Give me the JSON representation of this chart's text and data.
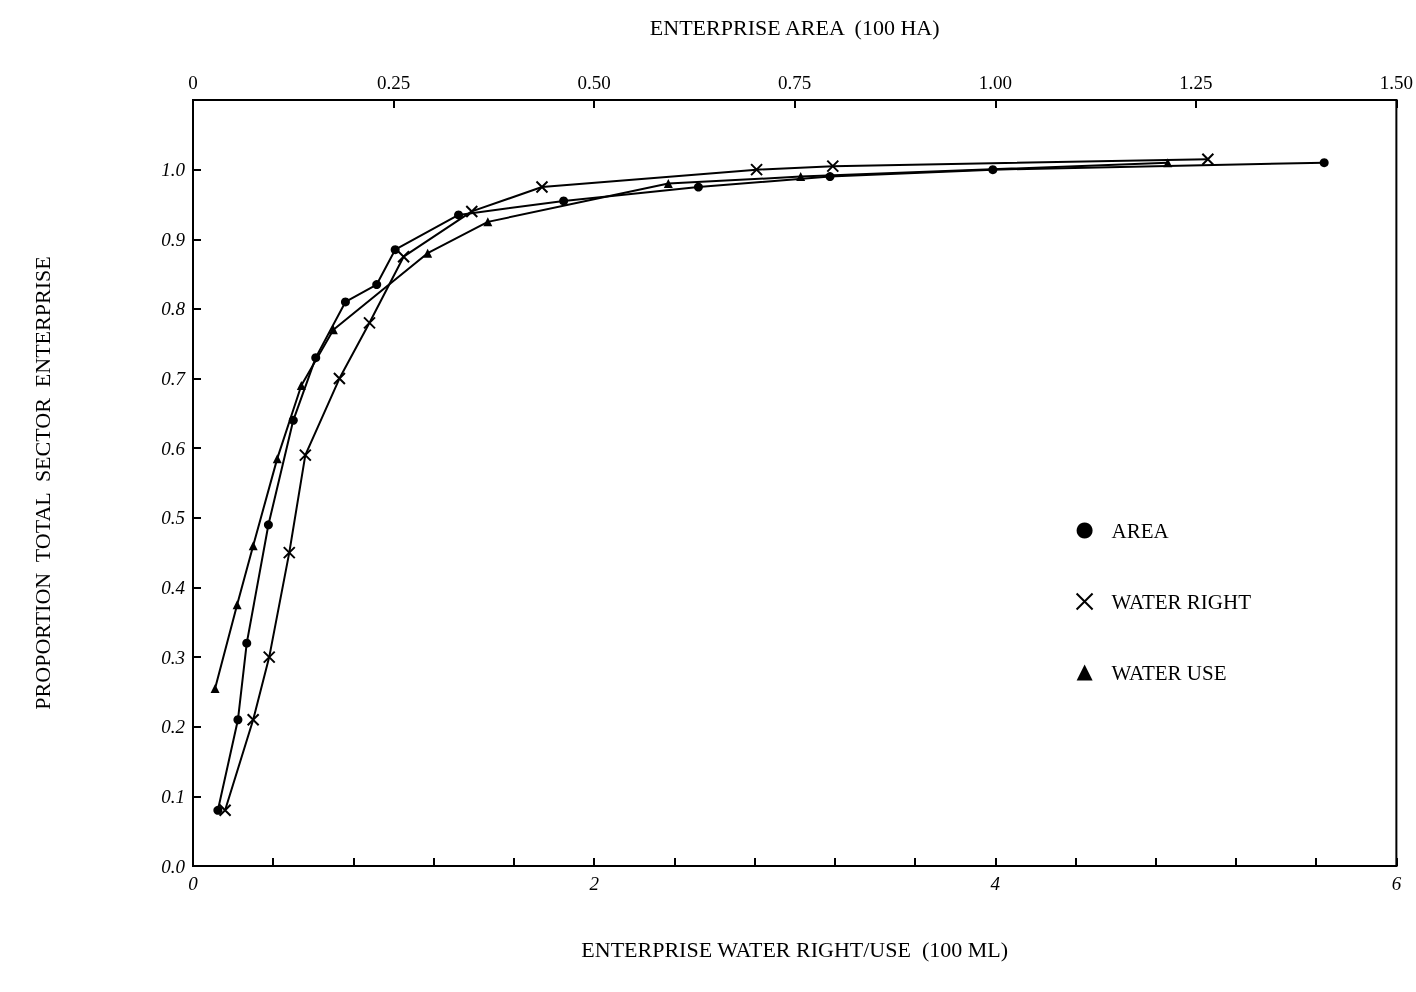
{
  "chart_data": {
    "type": "line",
    "xlabel": "ENTERPRISE WATER RIGHT/USE  (100 ML)",
    "x2label": "ENTERPRISE AREA  (100 HA)",
    "ylabel": "PROPORTION  TOTAL  SECTOR  ENTERPRISE",
    "xlim": [
      0,
      6
    ],
    "xticks": [
      0,
      {
        "value": 0.4,
        "label": null
      },
      {
        "value": 0.8,
        "label": null
      },
      {
        "value": 1.2,
        "label": null
      },
      {
        "value": 1.6,
        "label": null
      },
      2,
      {
        "value": 2.4,
        "label": null
      },
      {
        "value": 2.8,
        "label": null
      },
      {
        "value": 3.2,
        "label": null
      },
      {
        "value": 3.6,
        "label": null
      },
      4,
      {
        "value": 4.4,
        "label": null
      },
      {
        "value": 4.8,
        "label": null
      },
      {
        "value": 5.2,
        "label": null
      },
      {
        "value": 5.6,
        "label": null
      },
      6
    ],
    "x2lim": [
      0,
      1.5
    ],
    "x2ticks": [
      0,
      0.25,
      {
        "value": 0.5,
        "label": "0.50"
      },
      0.75,
      {
        "value": 1,
        "label": "1.00"
      },
      1.25,
      {
        "value": 1.5,
        "label": "1.50"
      }
    ],
    "ylim": [
      0,
      1.1
    ],
    "yticks": [
      {
        "value": 0,
        "label": "0.0"
      },
      0.1,
      0.2,
      0.3,
      0.4,
      0.5,
      0.6,
      0.7,
      0.8,
      0.9,
      {
        "value": 1,
        "label": "1.0"
      }
    ],
    "grid": false,
    "legend": "right",
    "line_style": "solid",
    "series": [
      {
        "name": "AREA",
        "color": "#000000",
        "marker": "circle",
        "axis": "x2",
        "x": [
          0.031,
          0.056,
          0.067,
          0.094,
          0.125,
          0.153,
          0.19,
          0.229,
          0.252,
          0.331,
          0.462,
          0.63,
          0.794,
          0.997,
          1.41
        ],
        "values": [
          0.08,
          0.21,
          0.32,
          0.49,
          0.64,
          0.73,
          0.81,
          0.835,
          0.885,
          0.935,
          0.955,
          0.975,
          0.99,
          1.0,
          1.01
        ]
      },
      {
        "name": "WATER RIGHT",
        "color": "#000000",
        "marker": "cross",
        "x": [
          0.16,
          0.3,
          0.38,
          0.48,
          0.56,
          0.73,
          0.88,
          1.05,
          1.39,
          1.74,
          2.81,
          3.19,
          5.06
        ],
        "values": [
          0.08,
          0.21,
          0.3,
          0.45,
          0.59,
          0.7,
          0.78,
          0.875,
          0.94,
          0.975,
          1.0,
          1.005,
          1.015
        ]
      },
      {
        "name": "WATER USE",
        "color": "#000000",
        "marker": "triangle",
        "x": [
          0.11,
          0.22,
          0.3,
          0.42,
          0.54,
          0.7,
          1.17,
          1.47,
          2.37,
          3.03,
          4.86
        ],
        "values": [
          0.255,
          0.375,
          0.46,
          0.585,
          0.69,
          0.77,
          0.88,
          0.925,
          0.98,
          0.99,
          1.01
        ]
      }
    ]
  }
}
